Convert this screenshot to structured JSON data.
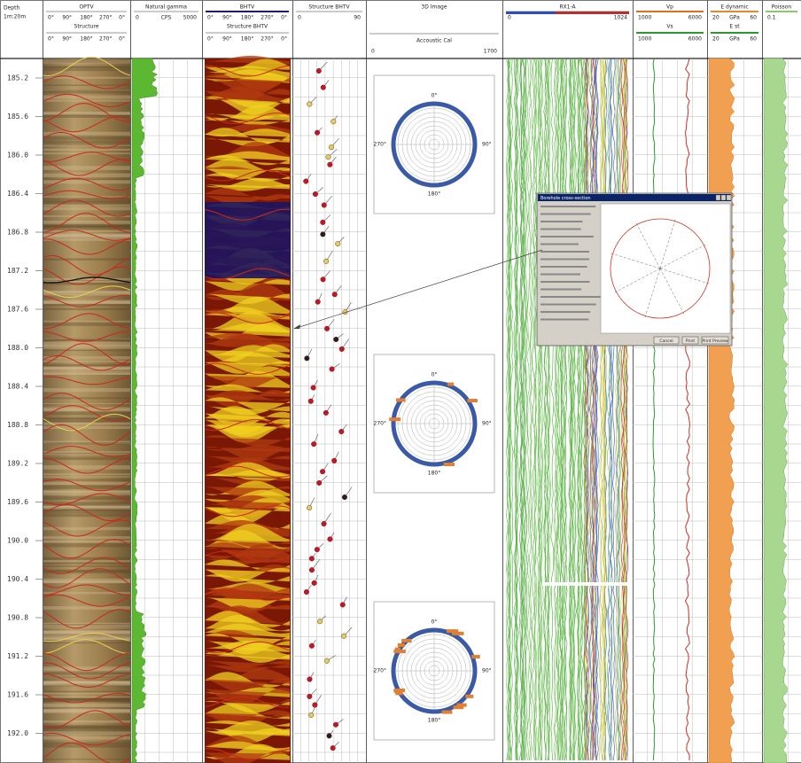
{
  "tracks": [
    {
      "title": "Depth",
      "scale": "1m:20m"
    },
    {
      "title": "OPTV",
      "ticks": [
        "0°",
        "90°",
        "180°",
        "270°",
        "0°"
      ],
      "subtitle": "Structure",
      "subticks": [
        "0°",
        "90°",
        "180°",
        "270°",
        "0°"
      ]
    },
    {
      "title": "Natural gamma",
      "ticks": [
        "0",
        "CPS",
        "5000"
      ]
    },
    {
      "title": "BHTV",
      "ticks": [
        "0°",
        "90°",
        "180°",
        "270°",
        "0°"
      ],
      "subtitle": "Structure BHTV",
      "subticks": [
        "0°",
        "90°",
        "180°",
        "270°",
        "0°"
      ]
    },
    {
      "title": "Structure BHTV",
      "ticks": [
        "0",
        "90"
      ]
    },
    {
      "title": "3D Image",
      "subtitle": "Accoustic Cal",
      "subticks": [
        "0",
        "1700"
      ]
    },
    {
      "title": "RX1-A",
      "ticks": [
        "0",
        "1024"
      ]
    },
    {
      "title": "Vp",
      "ticks": [
        "1000",
        "6000"
      ],
      "subtitle": "Vs",
      "subticks": [
        "1000",
        "6000"
      ]
    },
    {
      "title": "E dynamic",
      "ticks": [
        "20",
        "GPa",
        "60"
      ],
      "subtitle": "E st",
      "subticks": [
        "20",
        "GPa",
        "60"
      ]
    },
    {
      "title": "Poisson",
      "ticks": [
        "0.1"
      ]
    }
  ],
  "depths": [
    "185.2",
    "185.6",
    "186.0",
    "186.4",
    "186.8",
    "187.2",
    "187.6",
    "188.0",
    "188.4",
    "188.8",
    "189.2",
    "189.6",
    "190.0",
    "190.4",
    "190.8",
    "191.2",
    "191.6",
    "192.0"
  ],
  "polar_plots": [
    {
      "labels": [
        "0°",
        "90°",
        "180°",
        "270°"
      ]
    },
    {
      "labels": [
        "0°",
        "90°",
        "180°",
        "270°"
      ]
    },
    {
      "labels": [
        "0°",
        "90°",
        "180°",
        "270°"
      ]
    }
  ],
  "dialog": {
    "title": "Borehole cross-section",
    "buttons": [
      "Cancel",
      "Print",
      "Print Preview"
    ]
  }
}
